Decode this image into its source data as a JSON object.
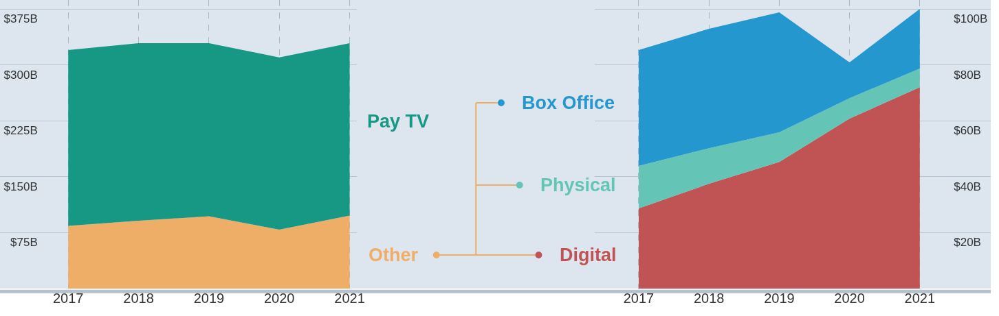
{
  "chart_data": [
    {
      "type": "area",
      "stacked": true,
      "x": [
        2017,
        2018,
        2019,
        2020,
        2021
      ],
      "xlim": [
        2016.03,
        2021.1
      ],
      "xticks": [
        2017,
        2018,
        2019,
        2020,
        2021
      ],
      "ylim": [
        0,
        387
      ],
      "yticks": [
        {
          "value": 75,
          "label": "$75B"
        },
        {
          "value": 150,
          "label": "$150B"
        },
        {
          "value": 225,
          "label": "$225B"
        },
        {
          "value": 300,
          "label": "$300B"
        },
        {
          "value": 375,
          "label": "$375B"
        }
      ],
      "grid": true,
      "legend": "right",
      "series": [
        {
          "name": "Other",
          "color": "#efae68",
          "values": [
            84,
            91,
            97,
            79,
            98
          ]
        },
        {
          "name": "Pay TV",
          "color": "#169885",
          "values": [
            236,
            238,
            232,
            231,
            231
          ]
        }
      ]
    },
    {
      "type": "area",
      "stacked": true,
      "x": [
        2017,
        2018,
        2019,
        2020,
        2021
      ],
      "xlim": [
        2016.37,
        2022.01
      ],
      "xticks": [
        2017,
        2018,
        2019,
        2020,
        2021
      ],
      "ylim": [
        0,
        103.2
      ],
      "yticks": [
        {
          "value": 20,
          "label": "$20B"
        },
        {
          "value": 40,
          "label": "$40B"
        },
        {
          "value": 60,
          "label": "$60B"
        },
        {
          "value": 80,
          "label": "$80B"
        },
        {
          "value": 100,
          "label": "$100B"
        }
      ],
      "grid": true,
      "legend": "left",
      "series": [
        {
          "name": "Digital",
          "color": "#c05455",
          "values": [
            28.7,
            37.5,
            45.3,
            60.8,
            72
          ]
        },
        {
          "name": "Physical",
          "color": "#64c5b7",
          "values": [
            15.2,
            12.7,
            10.6,
            7.3,
            6.7
          ]
        },
        {
          "name": "Box Office",
          "color": "#2597cf",
          "values": [
            41.4,
            42.7,
            42.9,
            12.8,
            21.3
          ]
        }
      ]
    }
  ]
}
